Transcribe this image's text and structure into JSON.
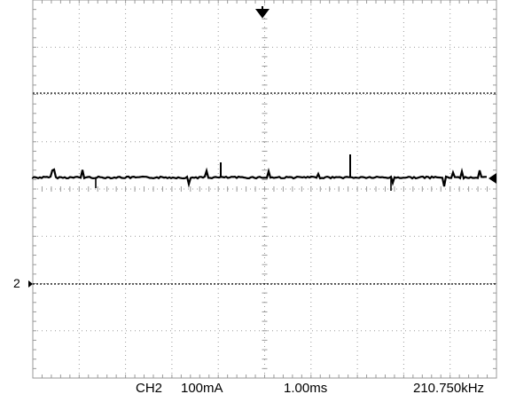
{
  "screen": {
    "background": "#ffffff",
    "grid_color": "#9a9a9a",
    "trace_color": "#000000",
    "divisions": {
      "horizontal": 10,
      "vertical": 8
    }
  },
  "markers": {
    "trigger_position": "down-arrow-icon",
    "trigger_level": "left-arrow-icon",
    "channel_marker_label": "2"
  },
  "status_bar": {
    "channel": "CH2",
    "scale": "100mA",
    "timebase": "1.00ms",
    "frequency": "210.750kHz"
  }
}
